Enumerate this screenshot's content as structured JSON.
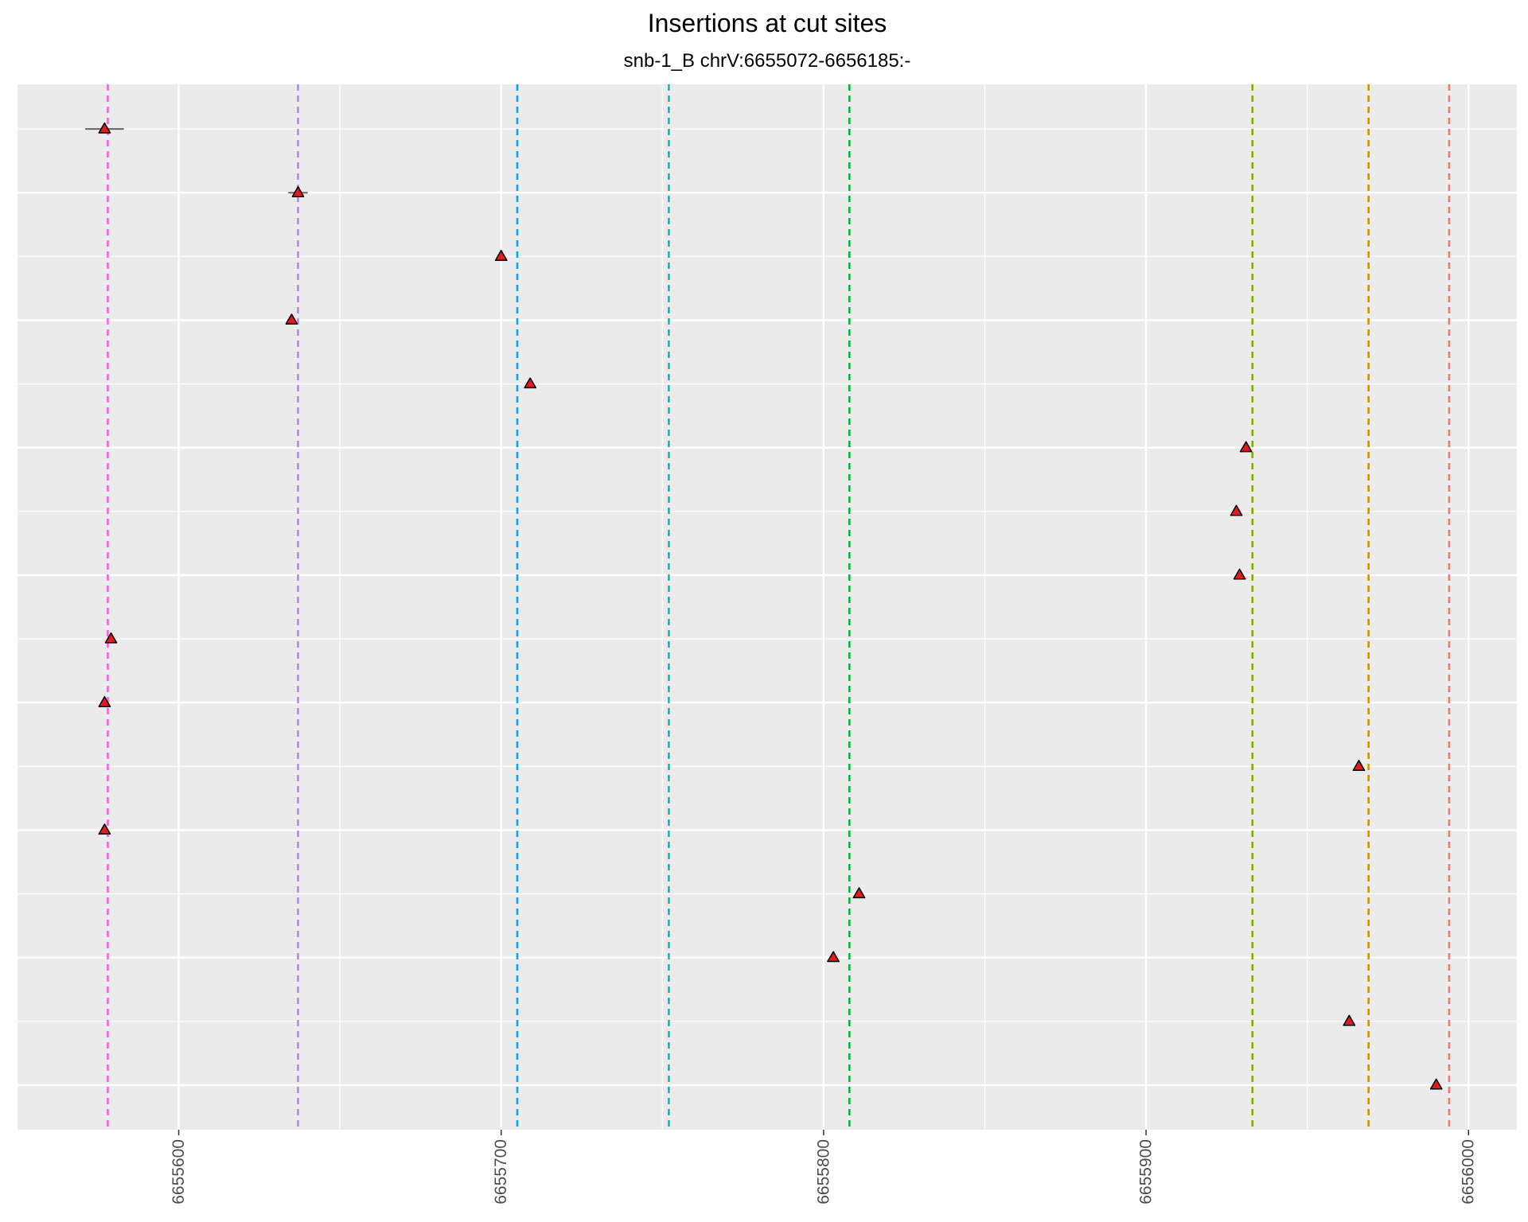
{
  "chart_data": {
    "type": "scatter",
    "title": "Insertions at cut sites",
    "subtitle": "snb-1_B chrV:6655072-6656185:-",
    "xlabel": "",
    "ylabel": "",
    "xlim": [
      6655550,
      6656015
    ],
    "ylim": [
      0.3,
      16.7
    ],
    "x_ticks": [
      6655600,
      6655700,
      6655800,
      6655900,
      6656000
    ],
    "x_tick_labels": [
      "6655600",
      "6655700",
      "6655800",
      "6655900",
      "6656000"
    ],
    "y_major_grid": [
      1,
      3,
      5,
      7,
      9,
      11,
      13,
      15
    ],
    "y_minor_grid": [
      2,
      4,
      6,
      8,
      10,
      12,
      14,
      16
    ],
    "grid": true,
    "background": "#ebebeb",
    "marker": {
      "shape": "triangle",
      "fill": "#e41a1c",
      "stroke": "#000000"
    },
    "cut_sites": [
      {
        "x": 6655578,
        "color": "#f564e3"
      },
      {
        "x": 6655637,
        "color": "#b983ff"
      },
      {
        "x": 6655705,
        "color": "#00a9ff"
      },
      {
        "x": 6655752,
        "color": "#00bfc4"
      },
      {
        "x": 6655808,
        "color": "#00ba38"
      },
      {
        "x": 6655933,
        "color": "#7cae00"
      },
      {
        "x": 6655969,
        "color": "#cd9600"
      },
      {
        "x": 6655994,
        "color": "#f8766d"
      }
    ],
    "points": [
      {
        "x": 6655577,
        "y": 16,
        "xmin": 6655571,
        "xmax": 6655583
      },
      {
        "x": 6655637,
        "y": 15,
        "xmin": 6655634,
        "xmax": 6655640
      },
      {
        "x": 6655700,
        "y": 14
      },
      {
        "x": 6655635,
        "y": 13
      },
      {
        "x": 6655709,
        "y": 12
      },
      {
        "x": 6655931,
        "y": 11
      },
      {
        "x": 6655928,
        "y": 10
      },
      {
        "x": 6655929,
        "y": 9
      },
      {
        "x": 6655579,
        "y": 8
      },
      {
        "x": 6655577,
        "y": 7
      },
      {
        "x": 6655966,
        "y": 6
      },
      {
        "x": 6655577,
        "y": 5
      },
      {
        "x": 6655811,
        "y": 4
      },
      {
        "x": 6655803,
        "y": 3
      },
      {
        "x": 6655963,
        "y": 2
      },
      {
        "x": 6655990,
        "y": 1
      }
    ]
  }
}
